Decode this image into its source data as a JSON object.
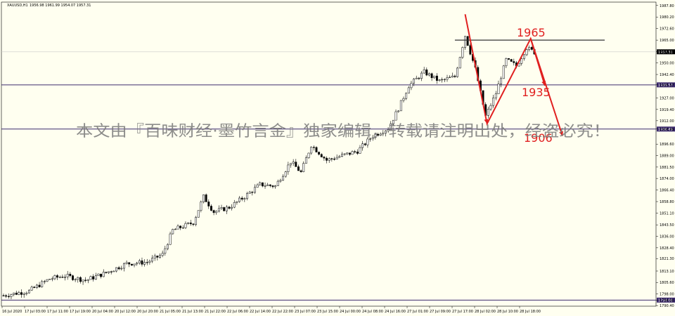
{
  "header": {
    "symbol_label": "XAUUSD,H1",
    "ohlc": "1956.98 1961.99 1954.07 1957.31"
  },
  "watermark": "本文由『百味财经·墨竹言金』独家编辑，转载请注明出处，经盗必究！",
  "chart_data": {
    "type": "candlestick",
    "ylim": [
      1790,
      1990
    ],
    "y_ticks": [
      "1987.80",
      "1980.20",
      "1972.60",
      "1965.00",
      "1957.31",
      "1950.00",
      "1942.40",
      "1935.57",
      "1927.00",
      "1919.40",
      "1912.00",
      "1906.49",
      "1896.60",
      "1889.00",
      "1881.50",
      "1874.00",
      "1866.40",
      "1858.80",
      "1851.10",
      "1843.50",
      "1836.00",
      "1828.40",
      "1821.30",
      "1813.10",
      "1805.60",
      "1798.00",
      "1794.00",
      "1790.40"
    ],
    "x_labels": [
      "16 Jul 2020",
      "17 Jul 03:00",
      "17 Jul 11:00",
      "17 Jul 19:00",
      "20 Jul 04:00",
      "20 Jul 12:00",
      "20 Jul 20:00",
      "21 Jul 05:00",
      "21 Jul 13:00",
      "21 Jul 22:00",
      "22 Jul 06:00",
      "22 Jul 14:00",
      "22 Jul 22:00",
      "23 Jul 07:00",
      "23 Jul 15:00",
      "24 Jul 00:00",
      "24 Jul 08:00",
      "24 Jul 16:00",
      "27 Jul 01:00",
      "27 Jul 09:00",
      "27 Jul 17:00",
      "28 Jul 02:00",
      "28 Jul 10:00",
      "28 Jul 18:00"
    ],
    "current_price": "1957.31",
    "levels": [
      {
        "price": 1935.57,
        "label": "1935.57",
        "color": "#3c2a6e"
      },
      {
        "price": 1906.49,
        "label": "1906.49",
        "color": "#3c2a6e"
      },
      {
        "price": 1794.0,
        "label": "1794.00",
        "color": "#3c2a6e"
      }
    ],
    "resistance_line": 1965,
    "annotations": [
      {
        "text": "1965",
        "color": "#e02020"
      },
      {
        "text": "1935",
        "color": "#e02020"
      },
      {
        "text": "1906",
        "color": "#e02020"
      }
    ],
    "anchors": [
      {
        "i": 0,
        "p": 1797
      },
      {
        "i": 10,
        "p": 1800
      },
      {
        "i": 18,
        "p": 1808
      },
      {
        "i": 24,
        "p": 1810
      },
      {
        "i": 32,
        "p": 1807
      },
      {
        "i": 40,
        "p": 1812
      },
      {
        "i": 48,
        "p": 1818
      },
      {
        "i": 56,
        "p": 1819
      },
      {
        "i": 62,
        "p": 1824
      },
      {
        "i": 66,
        "p": 1840
      },
      {
        "i": 74,
        "p": 1845
      },
      {
        "i": 78,
        "p": 1862
      },
      {
        "i": 82,
        "p": 1852
      },
      {
        "i": 88,
        "p": 1855
      },
      {
        "i": 94,
        "p": 1862
      },
      {
        "i": 100,
        "p": 1870
      },
      {
        "i": 106,
        "p": 1869
      },
      {
        "i": 112,
        "p": 1885
      },
      {
        "i": 116,
        "p": 1878
      },
      {
        "i": 120,
        "p": 1896
      },
      {
        "i": 126,
        "p": 1886
      },
      {
        "i": 132,
        "p": 1889
      },
      {
        "i": 138,
        "p": 1892
      },
      {
        "i": 144,
        "p": 1902
      },
      {
        "i": 150,
        "p": 1907
      },
      {
        "i": 154,
        "p": 1920
      },
      {
        "i": 158,
        "p": 1935
      },
      {
        "i": 164,
        "p": 1944
      },
      {
        "i": 170,
        "p": 1938
      },
      {
        "i": 176,
        "p": 1941
      },
      {
        "i": 180,
        "p": 1968
      },
      {
        "i": 184,
        "p": 1946
      },
      {
        "i": 188,
        "p": 1915
      },
      {
        "i": 192,
        "p": 1930
      },
      {
        "i": 196,
        "p": 1952
      },
      {
        "i": 200,
        "p": 1948
      },
      {
        "i": 204,
        "p": 1960
      },
      {
        "i": 207,
        "p": 1957
      }
    ]
  }
}
